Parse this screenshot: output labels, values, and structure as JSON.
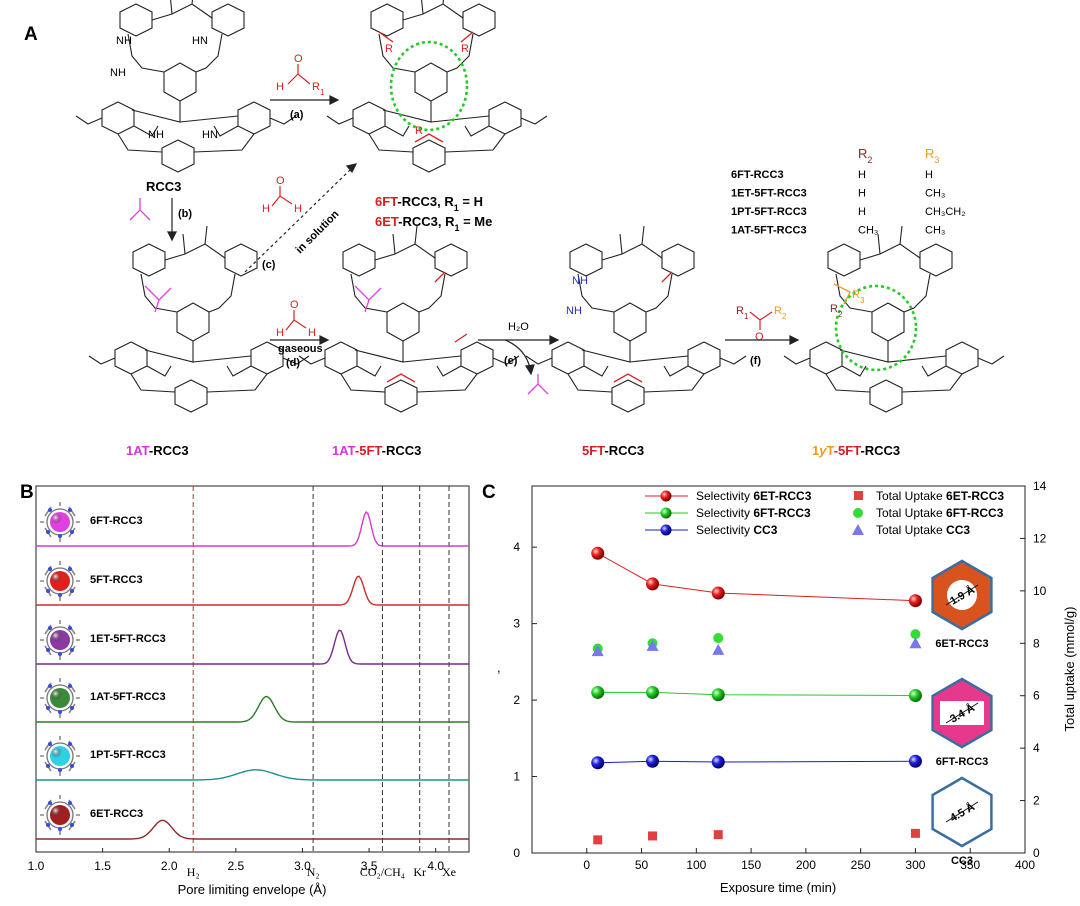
{
  "panel_a": {
    "letter": "A",
    "compounds": {
      "rcc3": "RCC3",
      "r6ft_prefix": "6FT",
      "r6ft_rest": "-RCC3, R",
      "r6ft_eq": " = H",
      "r6et_prefix": "6ET",
      "r6et_rest": "-RCC3, R",
      "r6et_eq": " = Me",
      "sub1": "1",
      "c1at_prefix": "1AT",
      "c1at_rest": "-RCC3",
      "c1at5ft_a": "1AT",
      "c1at5ft_b": "-5FT",
      "c1at5ft_c": "-RCC3",
      "c5ft_a": "5FT",
      "c5ft_b": "-RCC3",
      "c1yt_a": "1",
      "c1yt_b": "y",
      "c1yt_c": "T",
      "c1yt_d": "-5FT",
      "c1yt_e": "-RCC3"
    },
    "steps": {
      "a": "(a)",
      "b": "(b)",
      "c": "(c)",
      "d": "(d)",
      "e": "(e)",
      "f": "(f)",
      "in_solution": "in solution",
      "gaseous": "gaseous",
      "h2o": "H₂O"
    },
    "atoms": {
      "H": "H",
      "O": "O",
      "R1": "R",
      "R2": "R",
      "sub1": "1",
      "sub2": "2",
      "R3": "R",
      "sub3": "3",
      "NH": "NH",
      "HN": "HN",
      "N": "N"
    },
    "r_table": {
      "head_r2": "R",
      "head_r2_sub": "2",
      "head_r3": "R",
      "head_r3_sub": "3",
      "rows": [
        {
          "name": "6FT-RCC3",
          "r2": "H",
          "r3": "H"
        },
        {
          "name": "1ET-5FT-RCC3",
          "r2": "H",
          "r3": "CH₃"
        },
        {
          "name": "1PT-5FT-RCC3",
          "r2": "H",
          "r3": "CH₃CH₂"
        },
        {
          "name": "1AT-5FT-RCC3",
          "r2": "CH₃",
          "r3": "CH₃"
        }
      ]
    }
  },
  "panel_b": {
    "letter": "B",
    "xlabel": "Pore limiting envelope (Å)",
    "colors": {
      "6FT-RCC3": "#d63ad6",
      "5FT-RCC3": "#d42a2a",
      "1ET-5FT-RCC3": "#7a2a8c",
      "1AT-5FT-RCC3": "#2a7d22",
      "1PT-5FT-RCC3": "#1f8f8f",
      "6ET-RCC3": "#8a2a2a"
    },
    "molecule_colors": [
      "#e040e0",
      "#e02020",
      "#8a3aa0",
      "#3a8a3a",
      "#30d0e0",
      "#a02020"
    ],
    "gas_markers": [
      {
        "label": "H₂",
        "x": 2.18,
        "color": "#d22"
      },
      {
        "label": "N₂",
        "x": 3.08,
        "color": "#333"
      },
      {
        "label": "CO₂/CH₄",
        "x": 3.6,
        "color": "#333"
      },
      {
        "label": "Kr",
        "x": 3.88,
        "color": "#333"
      },
      {
        "label": "Xe",
        "x": 4.1,
        "color": "#333"
      }
    ]
  },
  "panel_c": {
    "letter": "C",
    "xlabel": "Exposure time (min)",
    "ylabel_right": "Total uptake (mmol/g)",
    "ylabel_left": ",",
    "legend": {
      "sel_prefix": "Selectivity ",
      "tot_prefix": "Total Uptake ",
      "s1": "6ET-RCC3",
      "s2": "6FT-RCC3",
      "s3": "CC3"
    },
    "insets": [
      {
        "label": "6ET-RCC3",
        "size": "1.9 Å",
        "fill": "#d9531e"
      },
      {
        "label": "6FT-RCC3",
        "size": "3.4 Å",
        "fill": "#e8388c"
      },
      {
        "label": "CC3",
        "size": "4.5 Å",
        "fill": "#ffffff"
      }
    ]
  },
  "chart_data": [
    {
      "type": "line",
      "title": "",
      "xlabel": "Pore limiting envelope (Å)",
      "ylabel": "",
      "xlim": [
        1.0,
        4.25
      ],
      "xticks": [
        "1.0",
        "1.5",
        "2.0",
        "2.5",
        "3.0",
        "3.5",
        "4.0"
      ],
      "series": [
        {
          "name": "6FT-RCC3",
          "peak_x": 3.48,
          "width": 0.035,
          "height": 1.0
        },
        {
          "name": "5FT-RCC3",
          "peak_x": 3.42,
          "width": 0.04,
          "height": 0.85
        },
        {
          "name": "1ET-5FT-RCC3",
          "peak_x": 3.28,
          "width": 0.04,
          "height": 1.0
        },
        {
          "name": "1AT-5FT-RCC3",
          "peak_x": 2.73,
          "width": 0.06,
          "height": 0.75
        },
        {
          "name": "1PT-5FT-RCC3",
          "peak_x": 2.65,
          "width": 0.14,
          "height": 0.3
        },
        {
          "name": "6ET-RCC3",
          "peak_x": 1.95,
          "width": 0.07,
          "height": 0.55
        }
      ]
    },
    {
      "type": "scatter",
      "title": "",
      "xlabel": "Exposure time (min)",
      "ylabel": "",
      "y2label": "Total uptake (mmol/g)",
      "xlim": [
        -50,
        400
      ],
      "ylim": [
        0,
        4.8
      ],
      "y2lim": [
        0,
        14
      ],
      "xticks": [
        "0",
        "50",
        "100",
        "150",
        "200",
        "250",
        "300",
        "350",
        "400"
      ],
      "yticks": [
        "0",
        "1",
        "2",
        "3",
        "4"
      ],
      "y2ticks": [
        "0",
        "2",
        "4",
        "6",
        "8",
        "10",
        "12",
        "14"
      ],
      "x": [
        10,
        60,
        120,
        300
      ],
      "series": [
        {
          "name": "Selectivity 6ET-RCC3",
          "axis": "left",
          "color": "#e02020",
          "marker": "sphere",
          "values": [
            3.92,
            3.52,
            3.4,
            3.3
          ]
        },
        {
          "name": "Selectivity 6FT-RCC3",
          "axis": "left",
          "color": "#22cc22",
          "marker": "sphere",
          "values": [
            2.1,
            2.1,
            2.07,
            2.06
          ]
        },
        {
          "name": "Selectivity CC3",
          "axis": "left",
          "color": "#1a1ad0",
          "marker": "sphere",
          "values": [
            1.18,
            1.2,
            1.19,
            1.2
          ]
        },
        {
          "name": "Total Uptake 6ET-RCC3",
          "axis": "right",
          "color": "#e04040",
          "marker": "square",
          "values": [
            0.5,
            0.65,
            0.7,
            0.75
          ]
        },
        {
          "name": "Total Uptake 6FT-RCC3",
          "axis": "right",
          "color": "#33dd33",
          "marker": "circle",
          "values": [
            7.8,
            8.0,
            8.2,
            8.35
          ]
        },
        {
          "name": "Total Uptake CC3",
          "axis": "right",
          "color": "#7777ee",
          "marker": "triangle",
          "values": [
            7.7,
            7.9,
            7.75,
            8.0
          ]
        }
      ]
    }
  ]
}
